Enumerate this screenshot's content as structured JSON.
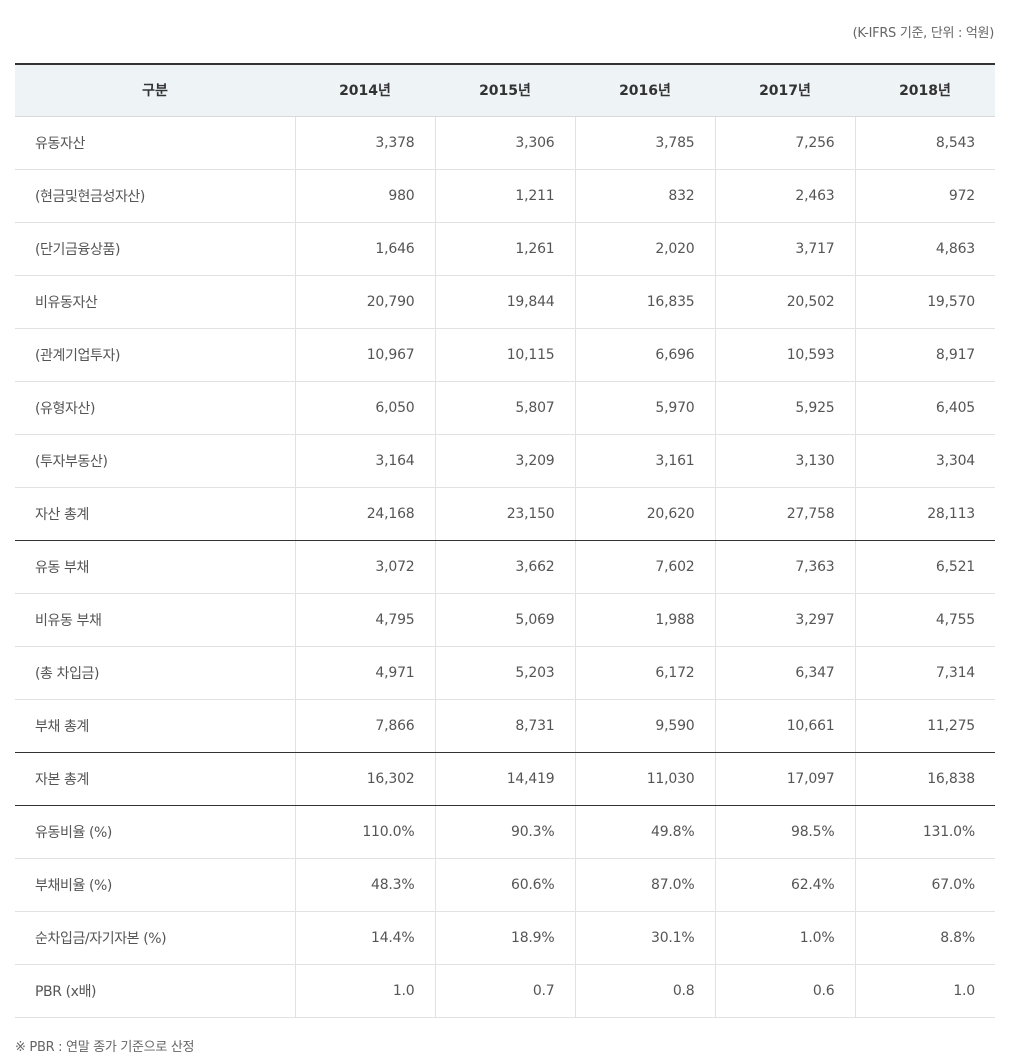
{
  "unit_note": "(K-IFRS 기준, 단위 : 억원)",
  "table": {
    "headers": [
      "구분",
      "2014년",
      "2015년",
      "2016년",
      "2017년",
      "2018년"
    ],
    "rows": [
      {
        "label": "유동자산",
        "values": [
          "3,378",
          "3,306",
          "3,785",
          "7,256",
          "8,543"
        ]
      },
      {
        "label": "(현금및현금성자산)",
        "values": [
          "980",
          "1,211",
          "832",
          "2,463",
          "972"
        ]
      },
      {
        "label": "(단기금융상품)",
        "values": [
          "1,646",
          "1,261",
          "2,020",
          "3,717",
          "4,863"
        ]
      },
      {
        "label": "비유동자산",
        "values": [
          "20,790",
          "19,844",
          "16,835",
          "20,502",
          "19,570"
        ]
      },
      {
        "label": "(관계기업투자)",
        "values": [
          "10,967",
          "10,115",
          "6,696",
          "10,593",
          "8,917"
        ]
      },
      {
        "label": "(유형자산)",
        "values": [
          "6,050",
          "5,807",
          "5,970",
          "5,925",
          "6,405"
        ]
      },
      {
        "label": "(투자부동산)",
        "values": [
          "3,164",
          "3,209",
          "3,161",
          "3,130",
          "3,304"
        ]
      },
      {
        "label": "자산 총계",
        "values": [
          "24,168",
          "23,150",
          "20,620",
          "27,758",
          "28,113"
        ]
      },
      {
        "label": "유동 부채",
        "values": [
          "3,072",
          "3,662",
          "7,602",
          "7,363",
          "6,521"
        ]
      },
      {
        "label": "비유동 부채",
        "values": [
          "4,795",
          "5,069",
          "1,988",
          "3,297",
          "4,755"
        ]
      },
      {
        "label": "(총 차입금)",
        "values": [
          "4,971",
          "5,203",
          "6,172",
          "6,347",
          "7,314"
        ]
      },
      {
        "label": "부채 총계",
        "values": [
          "7,866",
          "8,731",
          "9,590",
          "10,661",
          "11,275"
        ]
      },
      {
        "label": "자본 총계",
        "values": [
          "16,302",
          "14,419",
          "11,030",
          "17,097",
          "16,838"
        ]
      },
      {
        "label": "유동비율 (%)",
        "values": [
          "110.0%",
          "90.3%",
          "49.8%",
          "98.5%",
          "131.0%"
        ]
      },
      {
        "label": "부채비율 (%)",
        "values": [
          "48.3%",
          "60.6%",
          "87.0%",
          "62.4%",
          "67.0%"
        ]
      },
      {
        "label": "순차입금/자기자본 (%)",
        "values": [
          "14.4%",
          "18.9%",
          "30.1%",
          "1.0%",
          "8.8%"
        ]
      },
      {
        "label": "PBR (x배)",
        "values": [
          "1.0",
          "0.7",
          "0.8",
          "0.6",
          "1.0"
        ]
      }
    ]
  },
  "footnote": "※ PBR : 연말 종가 기준으로 산정"
}
